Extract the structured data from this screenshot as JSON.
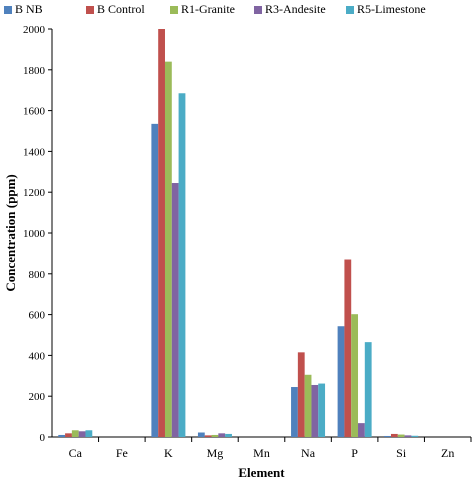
{
  "chart_data": {
    "type": "bar",
    "xlabel": "Element",
    "ylabel": "Concentration (ppm)",
    "ylim": [
      0,
      2000
    ],
    "yticks": [
      0,
      200,
      400,
      600,
      800,
      1000,
      1200,
      1400,
      1600,
      1800,
      2000
    ],
    "categories": [
      "Ca",
      "Fe",
      "K",
      "Mg",
      "Mn",
      "Na",
      "P",
      "Si",
      "Zn"
    ],
    "legend_position": "top",
    "grid": false,
    "series": [
      {
        "name": "B NB",
        "color": "#4F81BD",
        "values": [
          10,
          0,
          1535,
          22,
          0,
          245,
          543,
          5,
          0
        ]
      },
      {
        "name": "B Control",
        "color": "#C0504D",
        "values": [
          18,
          0,
          2000,
          8,
          0,
          415,
          870,
          15,
          0
        ]
      },
      {
        "name": "R1-Granite",
        "color": "#9BBB59",
        "values": [
          33,
          0,
          1840,
          10,
          0,
          305,
          602,
          12,
          0
        ]
      },
      {
        "name": "R3-Andesite",
        "color": "#8064A2",
        "values": [
          28,
          0,
          1245,
          18,
          0,
          255,
          68,
          8,
          0
        ]
      },
      {
        "name": "R5-Limestone",
        "color": "#4BACC6",
        "values": [
          33,
          0,
          1685,
          15,
          0,
          262,
          465,
          6,
          0
        ]
      }
    ]
  }
}
